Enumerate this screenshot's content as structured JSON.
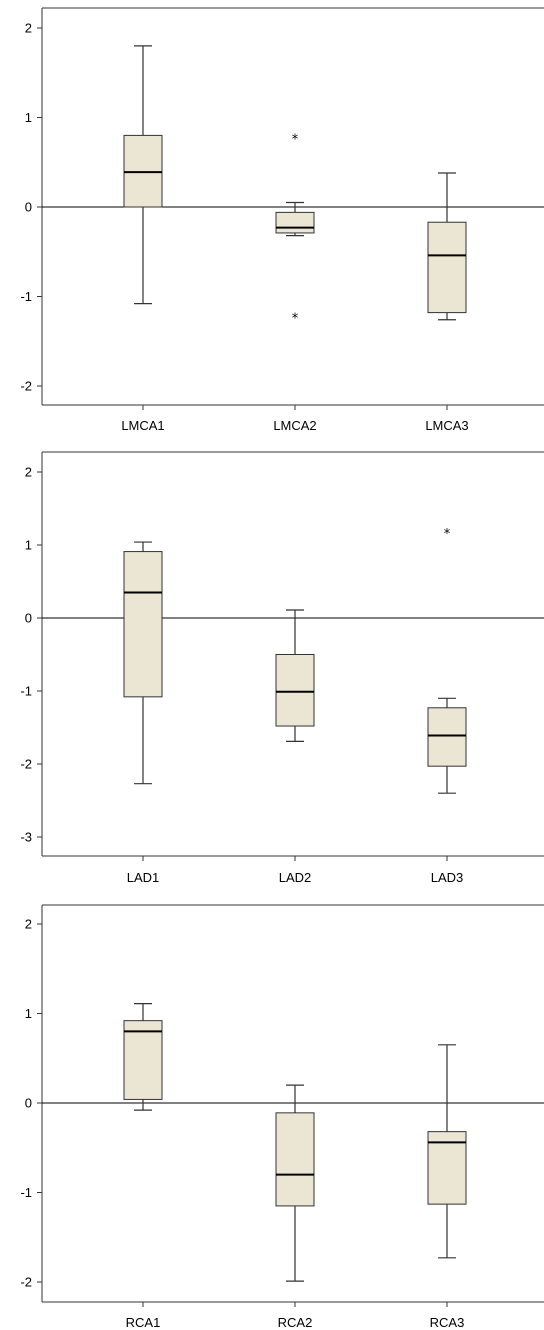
{
  "chart_data": [
    {
      "type": "box",
      "ylim": [
        -2.2,
        2.2
      ],
      "yticks": [
        -2,
        -1,
        0,
        1,
        2
      ],
      "reference_line": 0,
      "categories": [
        "LMCA1",
        "LMCA2",
        "LMCA3"
      ],
      "boxes": [
        {
          "category": "LMCA1",
          "whisker_low": -1.08,
          "q1": 0.0,
          "median": 0.39,
          "q3": 0.8,
          "whisker_high": 1.8,
          "outliers": []
        },
        {
          "category": "LMCA2",
          "whisker_low": -0.32,
          "q1": -0.29,
          "median": -0.23,
          "q3": -0.06,
          "whisker_high": 0.05,
          "outliers": [
            0.79,
            -1.21
          ]
        },
        {
          "category": "LMCA3",
          "whisker_low": -1.26,
          "q1": -1.18,
          "median": -0.54,
          "q3": -0.17,
          "whisker_high": 0.38,
          "outliers": []
        }
      ]
    },
    {
      "type": "box",
      "ylim": [
        -3.3,
        2.2
      ],
      "yticks": [
        -3,
        -2,
        -1,
        0,
        1,
        2
      ],
      "reference_line": 0,
      "categories": [
        "LAD1",
        "LAD2",
        "LAD3"
      ],
      "boxes": [
        {
          "category": "LAD1",
          "whisker_low": -2.27,
          "q1": -1.08,
          "median": 0.35,
          "q3": 0.91,
          "whisker_high": 1.04,
          "outliers": []
        },
        {
          "category": "LAD2",
          "whisker_low": -1.69,
          "q1": -1.48,
          "median": -1.01,
          "q3": -0.5,
          "whisker_high": 0.11,
          "outliers": []
        },
        {
          "category": "LAD3",
          "whisker_low": -2.4,
          "q1": -2.03,
          "median": -1.61,
          "q3": -1.23,
          "whisker_high": -1.1,
          "outliers": [
            1.19
          ]
        }
      ]
    },
    {
      "type": "box",
      "ylim": [
        -2.2,
        2.2
      ],
      "yticks": [
        -2,
        -1,
        0,
        1,
        2
      ],
      "reference_line": 0,
      "categories": [
        "RCA1",
        "RCA2",
        "RCA3"
      ],
      "boxes": [
        {
          "category": "RCA1",
          "whisker_low": -0.08,
          "q1": 0.04,
          "median": 0.8,
          "q3": 0.92,
          "whisker_high": 1.11,
          "outliers": []
        },
        {
          "category": "RCA2",
          "whisker_low": -1.99,
          "q1": -1.15,
          "median": -0.8,
          "q3": -0.11,
          "whisker_high": 0.2,
          "outliers": []
        },
        {
          "category": "RCA3",
          "whisker_low": -1.73,
          "q1": -1.13,
          "median": -0.44,
          "q3": -0.32,
          "whisker_high": 0.65,
          "outliers": []
        }
      ]
    }
  ],
  "colors": {
    "box_fill": "#ebe5d4",
    "box_stroke": "#333333",
    "median": "#000000",
    "axis": "#333333",
    "reference_line": "#000000",
    "background": "#ffffff"
  }
}
